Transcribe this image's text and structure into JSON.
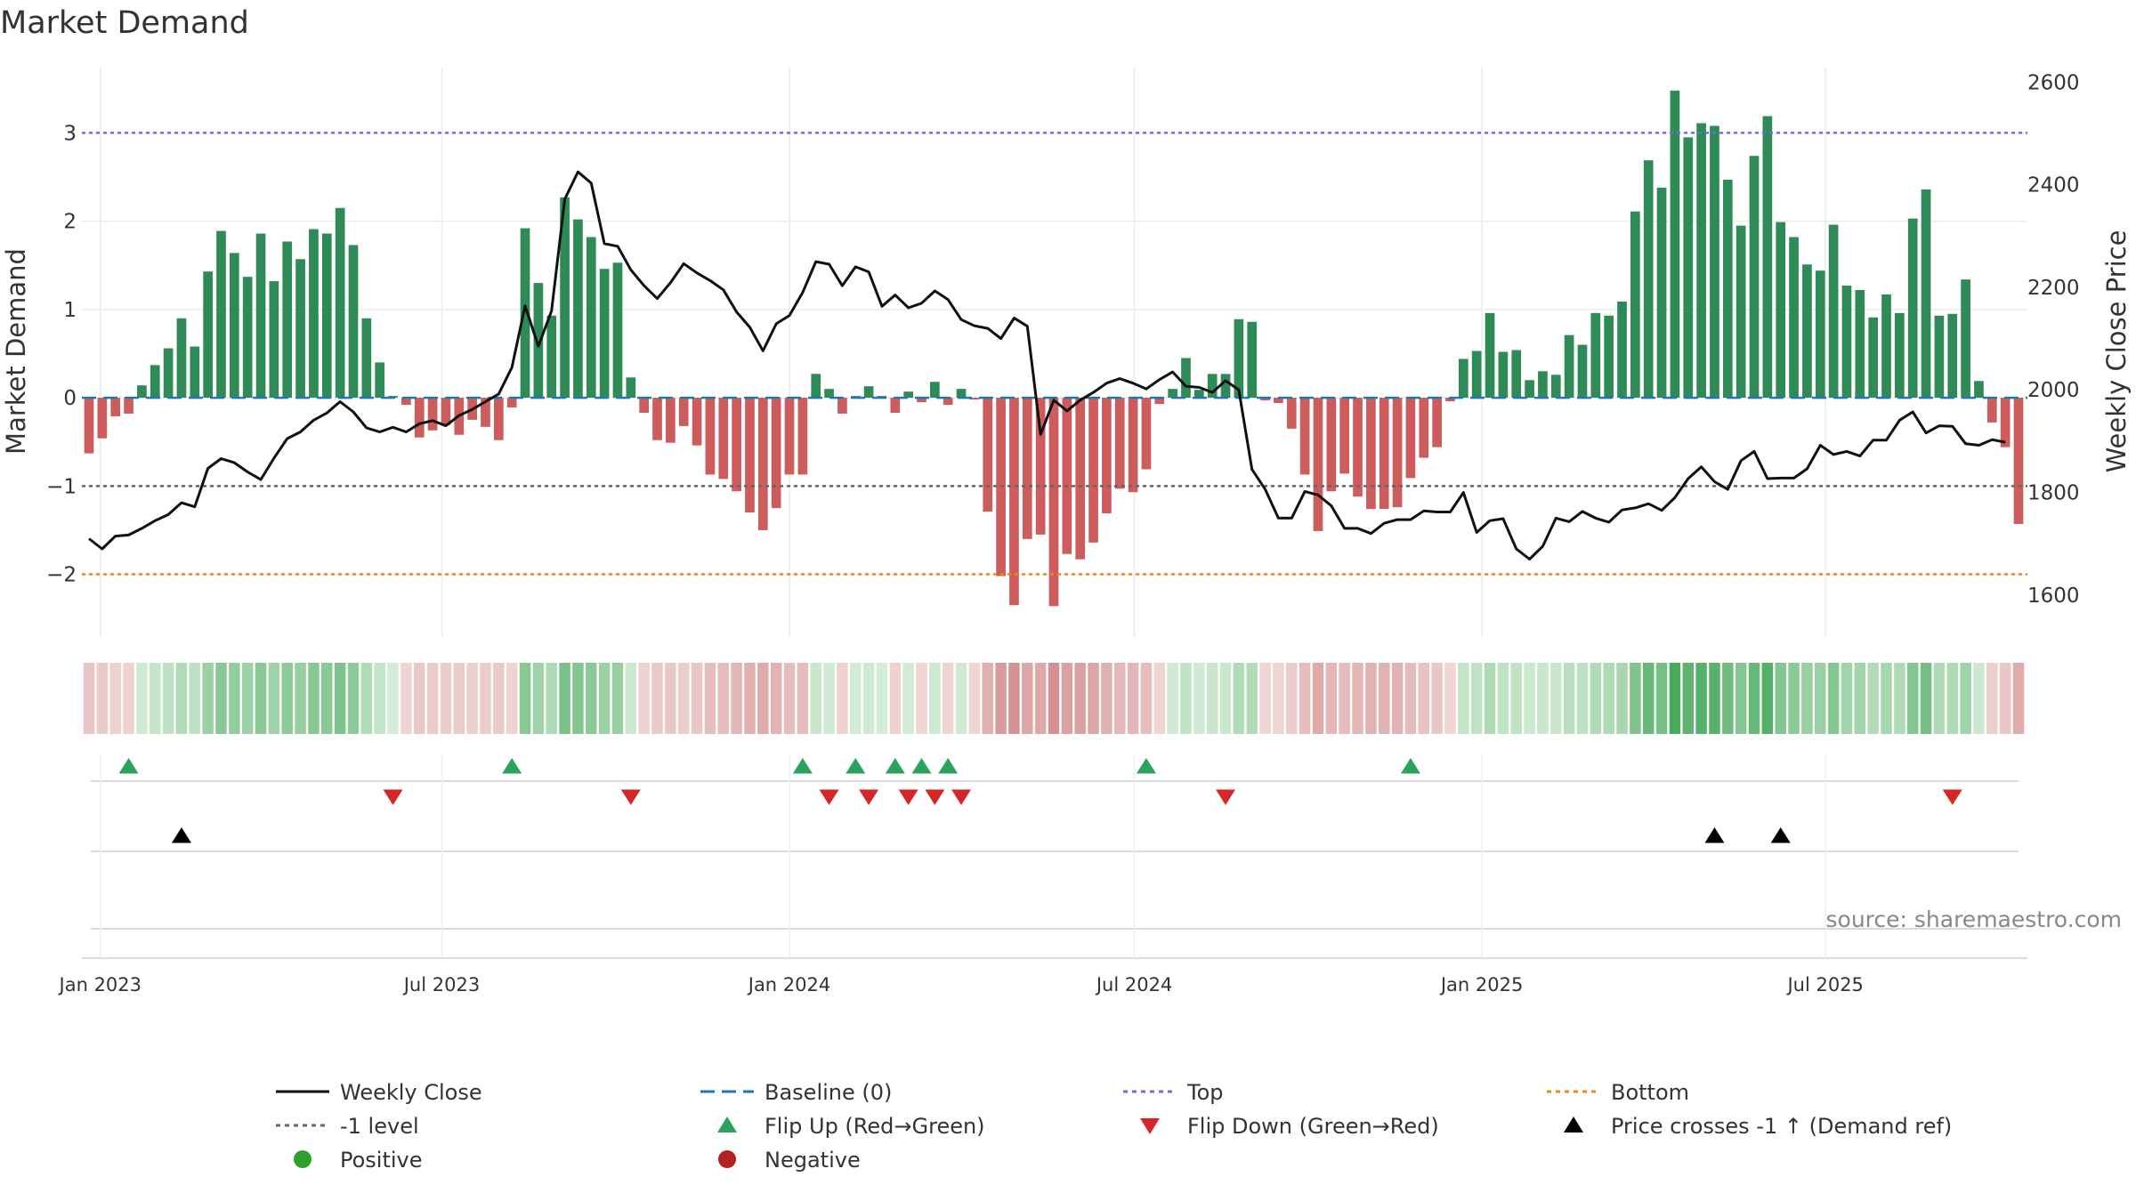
{
  "chart_data": {
    "type": "bar",
    "title": "Market Demand",
    "ylabel_left": "Market Demand",
    "ylabel_right": "Weekly Close Price",
    "source": "source: sharemaestro.com",
    "ylim_left": [
      -2.7,
      3.75
    ],
    "ylim_right": [
      1520,
      2630
    ],
    "yticks_left": [
      -2,
      -1,
      0,
      1,
      2,
      3
    ],
    "ytick_labels_left": [
      "−2",
      "−1",
      "0",
      "1",
      "2",
      "3"
    ],
    "yticks_right": [
      1600,
      1800,
      2000,
      2200,
      2400,
      2600
    ],
    "xaxis": {
      "start": "2022-12-26",
      "weeks": 145,
      "ticks": [
        {
          "label": "Jan 2023",
          "week": 0.86
        },
        {
          "label": "Jul 2023",
          "week": 26.7
        },
        {
          "label": "Jan 2024",
          "week": 53.0
        },
        {
          "label": "Jul 2024",
          "week": 79.1
        },
        {
          "label": "Jan 2025",
          "week": 105.4
        },
        {
          "label": "Jul 2025",
          "week": 131.4
        }
      ]
    },
    "reference_lines": {
      "top": 3,
      "baseline": 0,
      "minus1": -1,
      "bottom": -2
    },
    "demand": [
      -0.63,
      -0.46,
      -0.21,
      -0.18,
      0.14,
      0.37,
      0.56,
      0.9,
      0.58,
      1.43,
      1.89,
      1.64,
      1.37,
      1.86,
      1.32,
      1.77,
      1.57,
      1.91,
      1.86,
      2.15,
      1.73,
      0.9,
      0.4,
      0.02,
      -0.08,
      -0.45,
      -0.37,
      -0.31,
      -0.42,
      -0.25,
      -0.33,
      -0.48,
      -0.11,
      1.92,
      1.3,
      0.93,
      2.27,
      2.02,
      1.82,
      1.46,
      1.53,
      0.23,
      -0.17,
      -0.48,
      -0.51,
      -0.32,
      -0.54,
      -0.87,
      -0.92,
      -1.06,
      -1.3,
      -1.5,
      -1.25,
      -0.87,
      -0.87,
      0.27,
      0.1,
      -0.18,
      0.02,
      0.13,
      0.02,
      -0.17,
      0.07,
      -0.05,
      0.18,
      -0.08,
      0.1,
      -0.02,
      -1.29,
      -2.02,
      -2.35,
      -1.6,
      -1.55,
      -2.36,
      -1.77,
      -1.83,
      -1.64,
      -1.31,
      -1.03,
      -1.07,
      -0.81,
      -0.07,
      0.1,
      0.45,
      0.09,
      0.27,
      0.27,
      0.89,
      0.86,
      -0.03,
      -0.06,
      -0.35,
      -0.87,
      -1.51,
      -1.06,
      -0.86,
      -1.12,
      -1.26,
      -1.26,
      -1.24,
      -0.91,
      -0.68,
      -0.56,
      -0.04,
      0.44,
      0.53,
      0.96,
      0.52,
      0.54,
      0.2,
      0.3,
      0.26,
      0.71,
      0.6,
      0.96,
      0.93,
      1.09,
      2.11,
      2.69,
      2.38,
      3.48,
      2.95,
      3.11,
      3.08,
      2.47,
      1.95,
      2.74,
      3.19,
      1.99,
      1.82,
      1.51,
      1.44,
      1.96,
      1.27,
      1.22,
      0.91,
      1.17,
      0.96,
      2.03,
      2.36,
      0.93,
      0.95,
      1.34,
      0.19,
      -0.28,
      -0.56,
      -1.43
    ],
    "close": [
      1710,
      1690,
      1715,
      1717,
      1730,
      1745,
      1757,
      1780,
      1772,
      1847,
      1866,
      1858,
      1840,
      1825,
      1867,
      1905,
      1918,
      1941,
      1955,
      1977,
      1957,
      1926,
      1918,
      1927,
      1918,
      1934,
      1940,
      1930,
      1950,
      1962,
      1977,
      1992,
      2044,
      2164,
      2085,
      2154,
      2372,
      2425,
      2403,
      2285,
      2280,
      2234,
      2203,
      2178,
      2209,
      2246,
      2228,
      2213,
      2195,
      2152,
      2122,
      2076,
      2129,
      2145,
      2190,
      2250,
      2245,
      2203,
      2240,
      2230,
      2163,
      2185,
      2160,
      2169,
      2193,
      2176,
      2137,
      2125,
      2120,
      2100,
      2140,
      2124,
      1913,
      1980,
      1959,
      1980,
      1995,
      2013,
      2022,
      2013,
      2002,
      2020,
      2035,
      2007,
      2005,
      1995,
      2018,
      2000,
      1845,
      1806,
      1750,
      1750,
      1802,
      1795,
      1774,
      1730,
      1730,
      1720,
      1740,
      1747,
      1747,
      1764,
      1762,
      1762,
      1800,
      1722,
      1745,
      1749,
      1690,
      1670,
      1695,
      1750,
      1743,
      1763,
      1750,
      1742,
      1766,
      1770,
      1778,
      1765,
      1790,
      1827,
      1850,
      1821,
      1806,
      1862,
      1880,
      1827,
      1828,
      1828,
      1846,
      1892,
      1874,
      1880,
      1871,
      1902,
      1902,
      1941,
      1957,
      1916,
      1930,
      1929,
      1895,
      1892,
      1903,
      1898
    ],
    "flip_up_weeks": [
      3,
      32,
      54,
      58,
      61,
      63,
      65,
      80,
      100
    ],
    "flip_down_weeks": [
      23,
      41,
      56,
      59,
      62,
      64,
      66,
      86,
      141
    ],
    "price_cross_weeks": [
      7,
      123,
      128
    ],
    "legend": [
      {
        "label": "Weekly Close",
        "marker": "line",
        "color": "#111111"
      },
      {
        "label": "Baseline (0)",
        "marker": "dash",
        "color": "#1f77b4"
      },
      {
        "label": "Top",
        "marker": "dot",
        "color": "#7b68d8"
      },
      {
        "label": "Bottom",
        "marker": "dot",
        "color": "#e8891e"
      },
      {
        "label": "-1 level",
        "marker": "dot",
        "color": "#666666"
      },
      {
        "label": "Flip Up (Red→Green)",
        "marker": "tri-up",
        "color": "#2ca25f"
      },
      {
        "label": "Flip Down (Green→Red)",
        "marker": "tri-down",
        "color": "#d62728"
      },
      {
        "label": "Price crosses -1 ↑ (Demand ref)",
        "marker": "tri-up",
        "color": "#000000"
      },
      {
        "label": "Positive",
        "marker": "circle",
        "color": "#2ca02c"
      },
      {
        "label": "Negative",
        "marker": "circle",
        "color": "#b22222"
      }
    ],
    "colors": {
      "positive_bar": "#2e8b57",
      "negative_bar": "#cd5c5c",
      "close_line": "#111111",
      "baseline": "#1f77b4",
      "top": "#7b68d8",
      "bottom": "#e8891e",
      "minus1": "#666666",
      "flip_up": "#2ca25f",
      "flip_down": "#d62728",
      "price_cross": "#000000"
    }
  }
}
